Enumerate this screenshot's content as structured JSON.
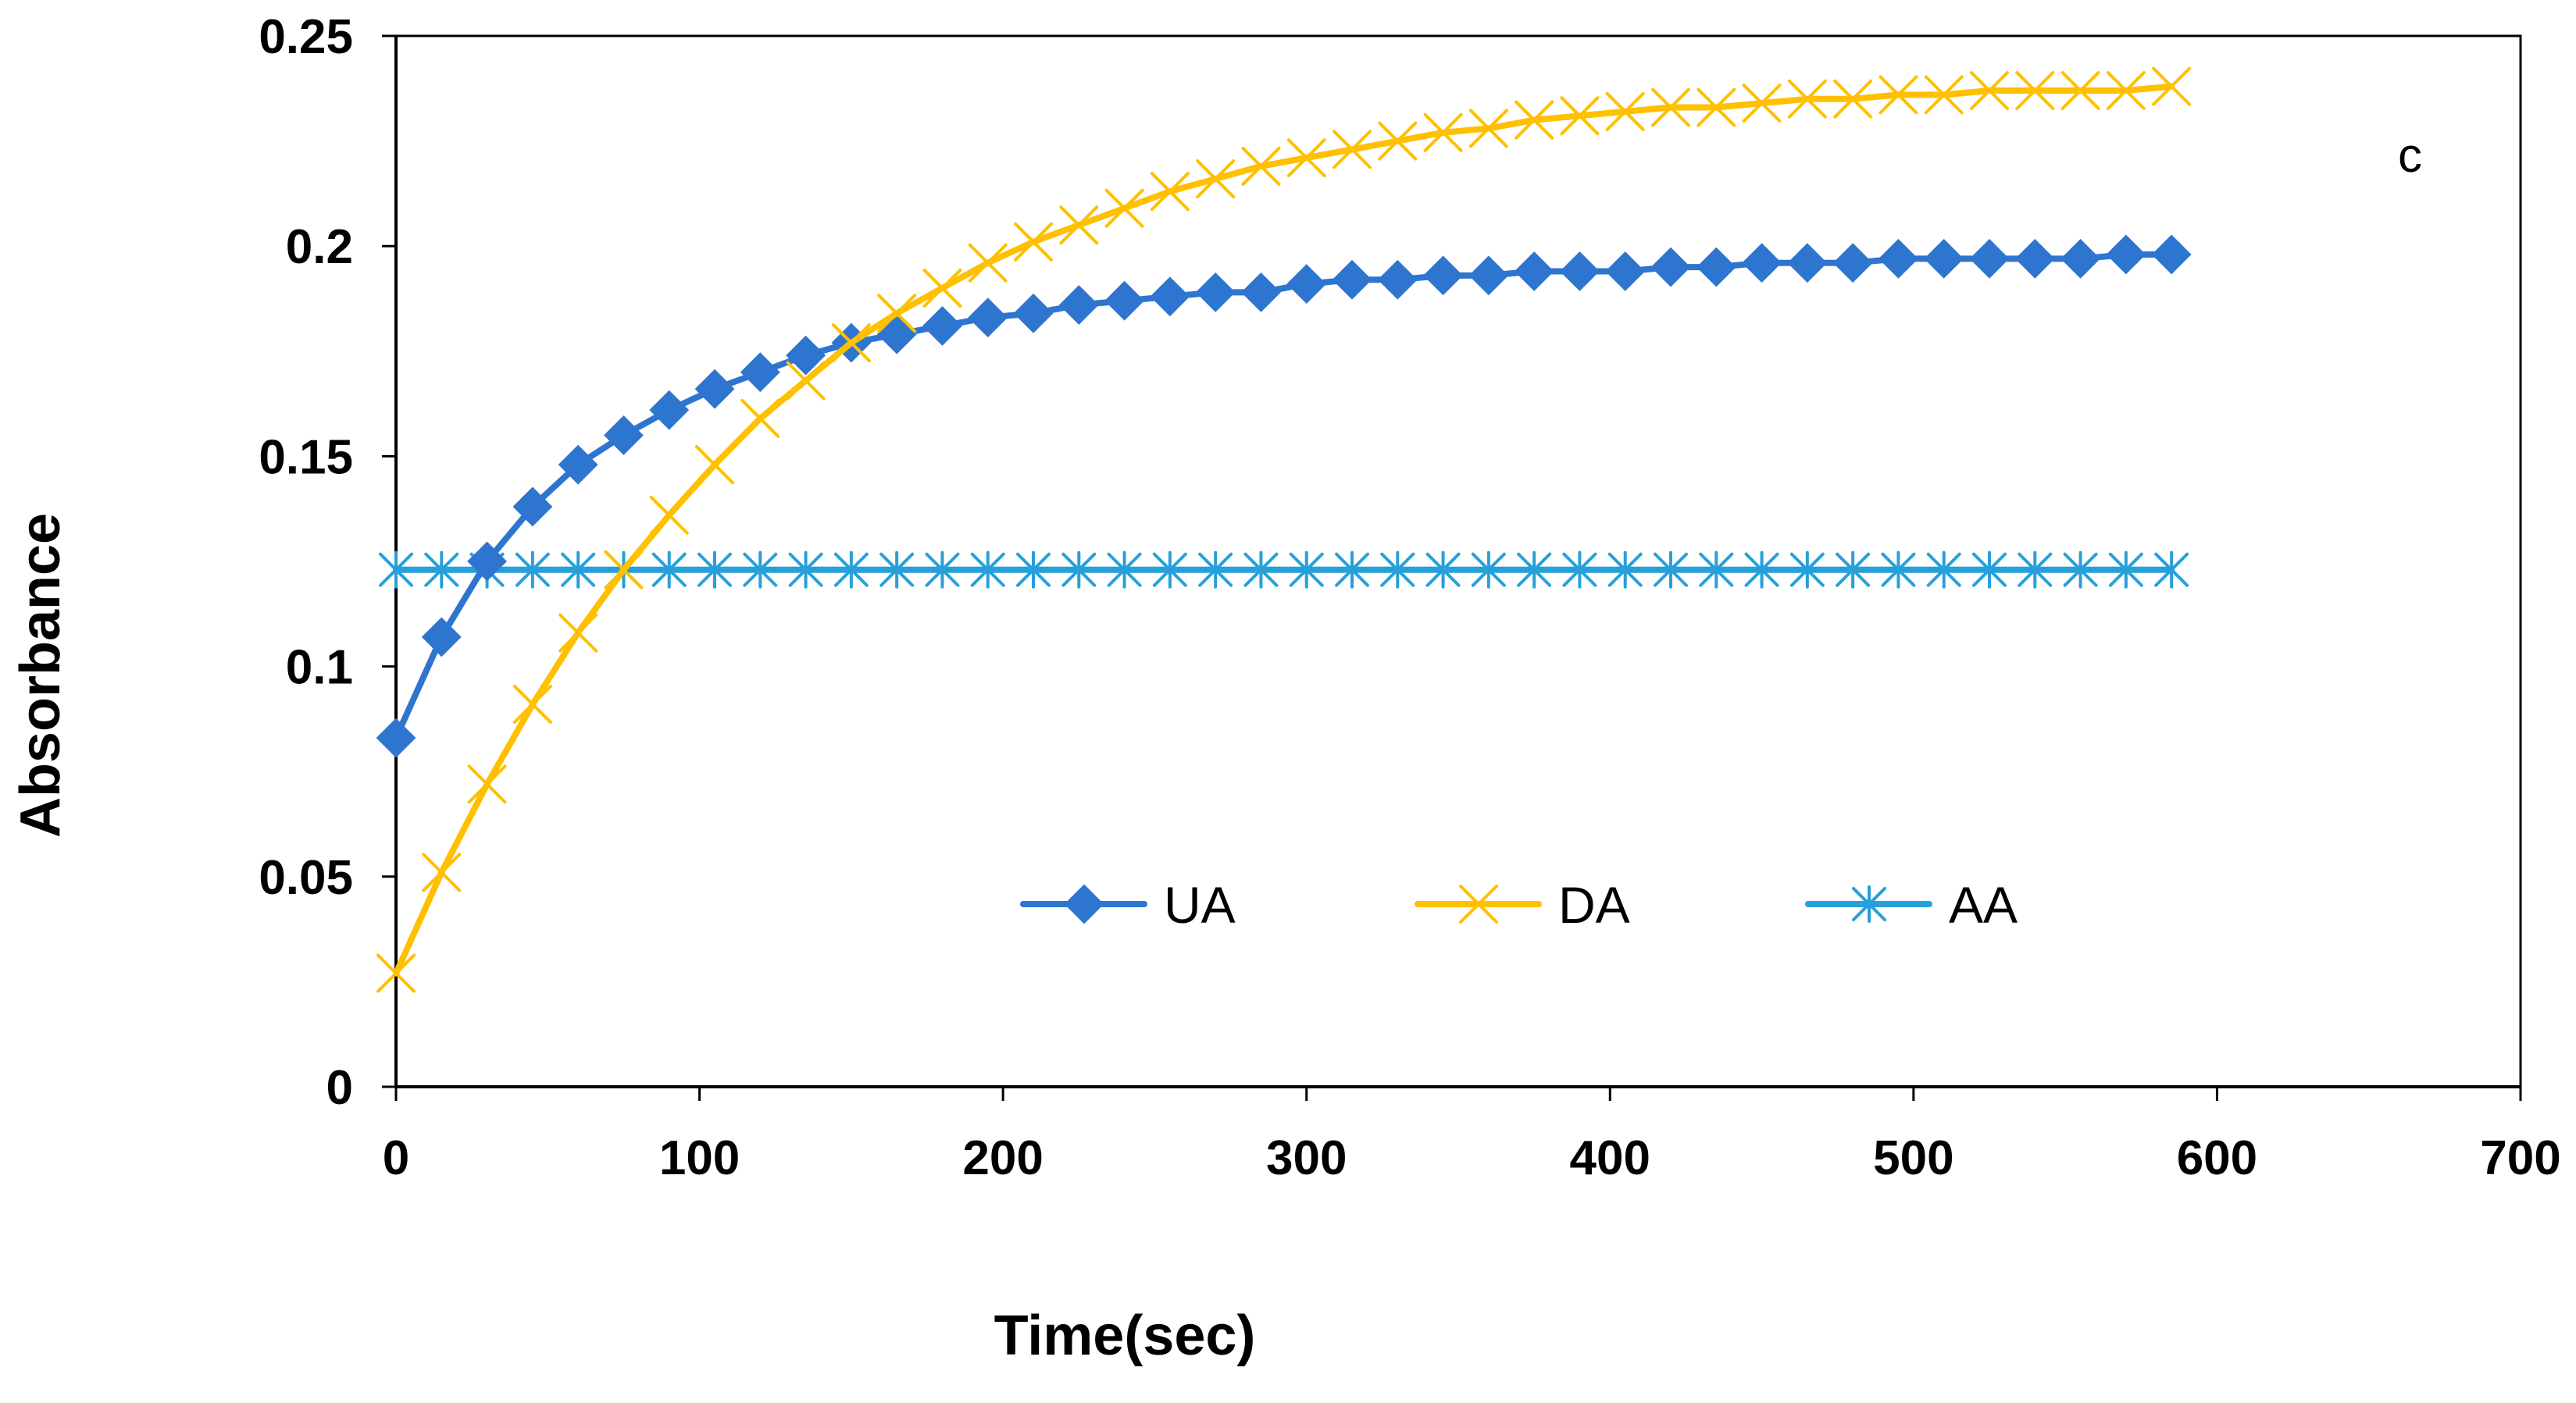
{
  "chart_data": {
    "type": "line",
    "title": "",
    "panel_label": "c",
    "xlabel": "Time(sec)",
    "ylabel": "Absorbance",
    "xlim": [
      0,
      700
    ],
    "ylim": [
      0,
      0.25
    ],
    "xticks": [
      0,
      100,
      200,
      300,
      400,
      500,
      600,
      700
    ],
    "xtick_labels": [
      "0",
      "100",
      "200",
      "300",
      "400",
      "500",
      "600",
      "700"
    ],
    "yticks": [
      0,
      0.05,
      0.1,
      0.15,
      0.2,
      0.25
    ],
    "ytick_labels": [
      "0",
      "0.05",
      "0.1",
      "0.15",
      "0.2",
      "0.25"
    ],
    "grid": false,
    "legend_position": "bottom-center",
    "x": [
      0,
      15,
      30,
      45,
      60,
      75,
      90,
      105,
      120,
      135,
      150,
      165,
      180,
      195,
      210,
      225,
      240,
      255,
      270,
      285,
      300,
      315,
      330,
      345,
      360,
      375,
      390,
      405,
      420,
      435,
      450,
      465,
      480,
      495,
      510,
      525,
      540,
      555,
      570,
      585
    ],
    "series": [
      {
        "name": "UA",
        "color": "#2E75D0",
        "marker": "diamond",
        "values": [
          0.083,
          0.107,
          0.125,
          0.138,
          0.148,
          0.155,
          0.161,
          0.166,
          0.17,
          0.174,
          0.177,
          0.179,
          0.181,
          0.183,
          0.184,
          0.186,
          0.187,
          0.188,
          0.189,
          0.189,
          0.191,
          0.192,
          0.192,
          0.193,
          0.193,
          0.194,
          0.194,
          0.194,
          0.195,
          0.195,
          0.196,
          0.196,
          0.196,
          0.197,
          0.197,
          0.197,
          0.197,
          0.197,
          0.198,
          0.198
        ]
      },
      {
        "name": "DA",
        "color": "#FFC000",
        "marker": "x",
        "values": [
          0.027,
          0.051,
          0.072,
          0.091,
          0.108,
          0.123,
          0.136,
          0.148,
          0.159,
          0.168,
          0.177,
          0.184,
          0.19,
          0.196,
          0.201,
          0.205,
          0.209,
          0.213,
          0.216,
          0.219,
          0.221,
          0.223,
          0.225,
          0.227,
          0.228,
          0.23,
          0.231,
          0.232,
          0.233,
          0.233,
          0.234,
          0.235,
          0.235,
          0.236,
          0.236,
          0.237,
          0.237,
          0.237,
          0.237,
          0.238
        ]
      },
      {
        "name": "AA",
        "color": "#26A0DA",
        "marker": "asterisk",
        "values": [
          0.123,
          0.123,
          0.123,
          0.123,
          0.123,
          0.123,
          0.123,
          0.123,
          0.123,
          0.123,
          0.123,
          0.123,
          0.123,
          0.123,
          0.123,
          0.123,
          0.123,
          0.123,
          0.123,
          0.123,
          0.123,
          0.123,
          0.123,
          0.123,
          0.123,
          0.123,
          0.123,
          0.123,
          0.123,
          0.123,
          0.123,
          0.123,
          0.123,
          0.123,
          0.123,
          0.123,
          0.123,
          0.123,
          0.123,
          0.123
        ]
      }
    ]
  }
}
